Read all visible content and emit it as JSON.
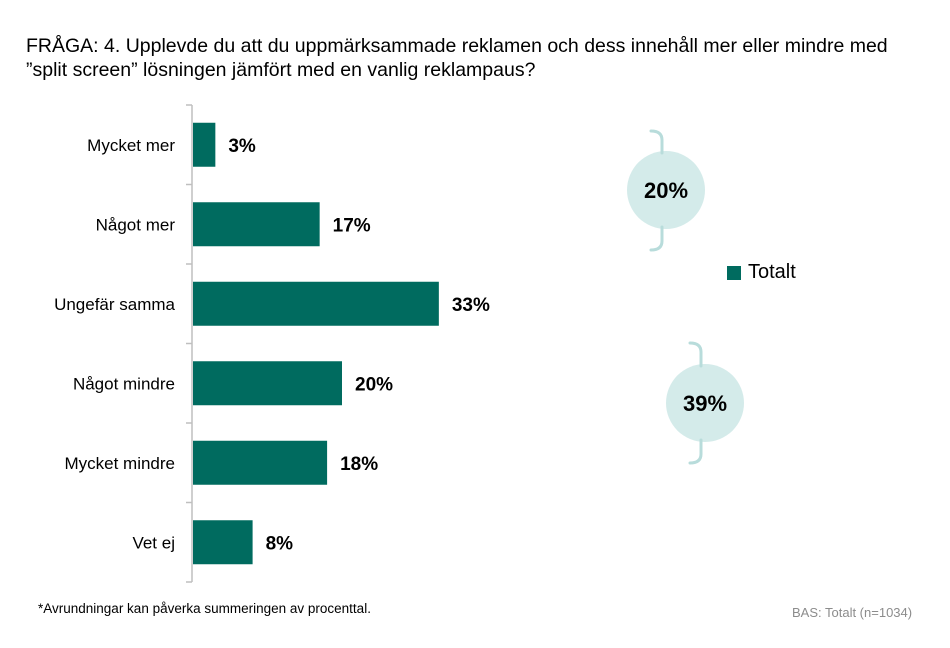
{
  "question": "FRÅGA: 4. Upplevde du att du uppmärksammade reklamen och dess innehåll mer eller mindre med ”split screen” lösningen jämfört med en vanlig reklampaus?",
  "chart_data": {
    "type": "bar",
    "orientation": "horizontal",
    "categories": [
      "Mycket mer",
      "Något mer",
      "Ungefär samma",
      "Något mindre",
      "Mycket mindre",
      "Vet ej"
    ],
    "series": [
      {
        "name": "Totalt",
        "values": [
          3,
          17,
          33,
          20,
          18,
          8
        ],
        "labels": [
          "3%",
          "17%",
          "33%",
          "20%",
          "18%",
          "8%"
        ]
      }
    ],
    "xlim": [
      0,
      50
    ],
    "grid": false,
    "legend_position": "right",
    "bar_color": "#006b5f",
    "annotations": [
      {
        "label": "20%",
        "groups": [
          "Mycket mer",
          "Något mer"
        ]
      },
      {
        "label": "39%",
        "groups": [
          "Något mindre",
          "Mycket mindre"
        ]
      }
    ],
    "annotation_color": "#d4ebea",
    "bracket_color": "#b8dcdb"
  },
  "footnote": "*Avrundningar kan påverka summeringen av procenttal.",
  "base_text": "BAS: Totalt (n=1034)"
}
